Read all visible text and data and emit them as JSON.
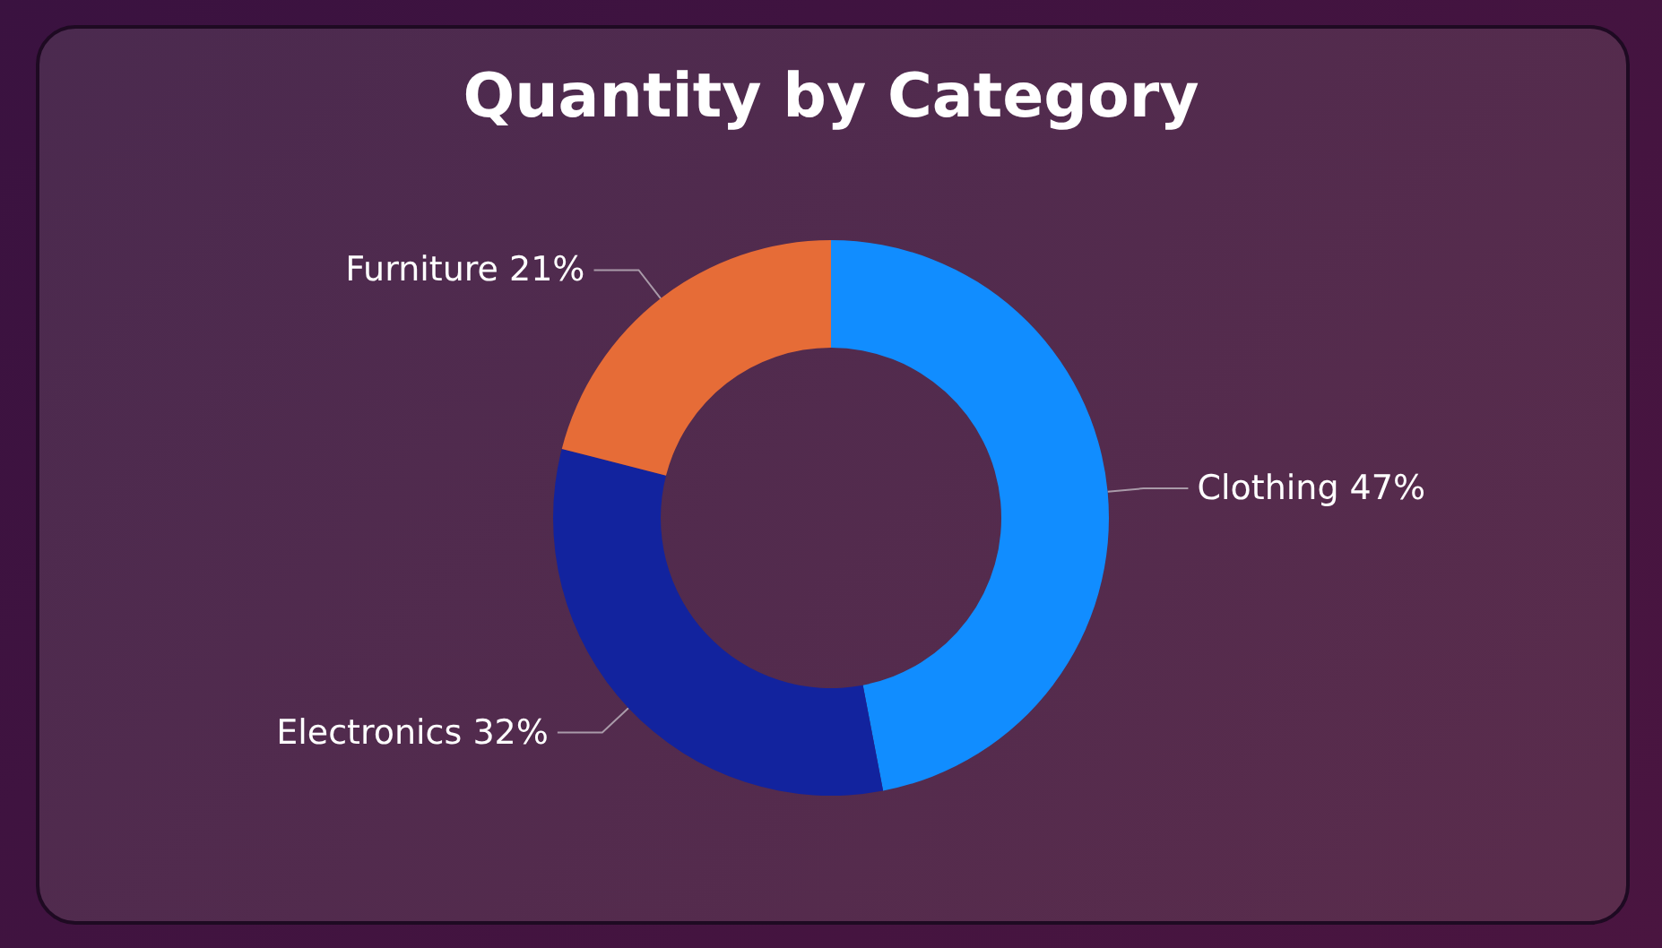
{
  "chart_data": {
    "type": "donut",
    "title": "Quantity by Category",
    "categories": [
      "Clothing",
      "Electronics",
      "Furniture"
    ],
    "values": [
      47,
      32,
      21
    ],
    "value_labels": [
      "47%",
      "32%",
      "21%"
    ],
    "colors": [
      "#118dff",
      "#12239e",
      "#e66c37"
    ],
    "legend": false
  }
}
